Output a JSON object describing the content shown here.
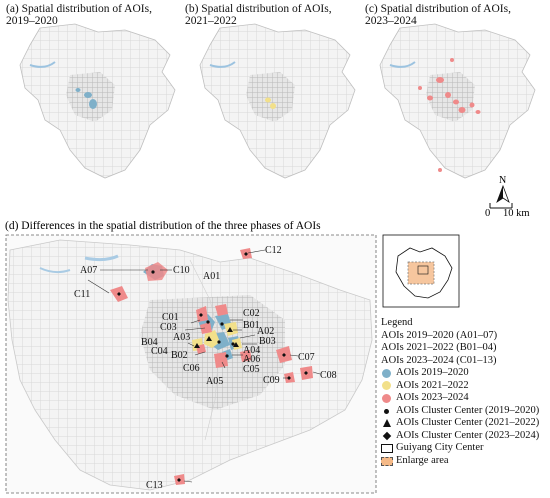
{
  "panels": {
    "a_title": "(a) Spatial distribution of AOIs,",
    "a_title2": "2019–2020",
    "b_title": "(b) Spatial distribution of AOIs,",
    "b_title2": "2021–2022",
    "c_title": "(c) Spatial distribution of AOIs,",
    "c_title2": "2023–2024",
    "d_title": "(d) Differences in the spatial distribution of the three phases of AOIs"
  },
  "north_label": "N",
  "scale": {
    "zero": "0",
    "value": "10 km"
  },
  "legend": {
    "heading": "Legend",
    "lines": [
      "AOIs 2019–2020 (A01–07)",
      "AOIs 2021–2022 (B01–04)",
      "AOIs 2023–2024 (C01–13)"
    ],
    "items": [
      {
        "label": "AOIs 2019–2020",
        "color": "#7fb0c9",
        "symbol": "dot"
      },
      {
        "label": "AOIs 2021–2022",
        "color": "#f2e08a",
        "symbol": "dot"
      },
      {
        "label": "AOIs 2023–2024",
        "color": "#ef8a8a",
        "symbol": "dot"
      },
      {
        "label": "AOIs Cluster Center (2019–2020)",
        "symbol": "dot-black"
      },
      {
        "label": "AOIs Cluster Center (2021–2022)",
        "symbol": "triangle"
      },
      {
        "label": "AOIs Cluster Center (2023–2024)",
        "symbol": "diamond"
      },
      {
        "label": "Guiyang City Center",
        "symbol": "rect"
      },
      {
        "label": "Enlarge area",
        "symbol": "rect-dashed"
      }
    ]
  },
  "labels": {
    "A01": "A01",
    "A02": "A02",
    "A03": "A03",
    "A04": "A04",
    "A05": "A05",
    "A06": "A06",
    "A07": "A07",
    "B01": "B01",
    "B02": "B02",
    "B03": "B03",
    "B04": "B04",
    "C01": "C01",
    "C02": "C02",
    "C03": "C03",
    "C04": "C04",
    "C05": "C05",
    "C06": "C06",
    "C07": "C07",
    "C08": "C08",
    "C09": "C09",
    "C10": "C10",
    "C11": "C11",
    "C12": "C12",
    "C13": "C13"
  },
  "colors": {
    "a": "#7fb0c9",
    "b": "#f2e08a",
    "c": "#ef8a8a",
    "enlarge": "#f5b987"
  }
}
